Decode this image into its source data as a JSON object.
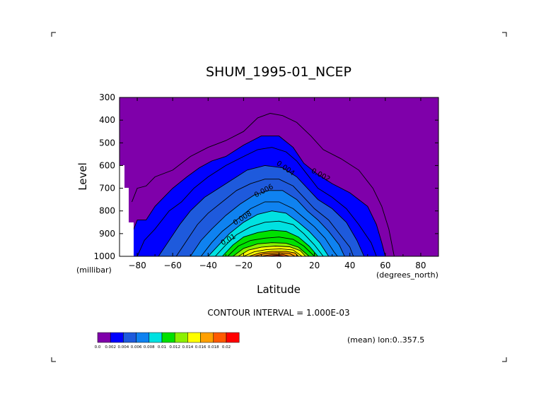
{
  "chart_data": {
    "type": "filled-contour",
    "title": "SHUM_1995-01_NCEP",
    "xlabel": "Latitude",
    "ylabel": "Level",
    "x_units": "(degrees_north)",
    "y_units": "(millibar)",
    "xlim": [
      -90,
      90
    ],
    "ylim": [
      1000,
      300
    ],
    "x_ticks": [
      -80,
      -60,
      -40,
      -20,
      0,
      20,
      40,
      60,
      80
    ],
    "y_ticks": [
      300,
      400,
      500,
      600,
      700,
      800,
      900,
      1000
    ],
    "contour_interval_text": "CONTOUR INTERVAL = 1.000E-03",
    "mean_text": "(mean) lon:0..357.5",
    "contour_labels": [
      "0.002",
      "0.004",
      "0.006",
      "0.008",
      "0.01"
    ],
    "colorbar": {
      "colors": [
        "#7f00aa",
        "#0000ff",
        "#1e5adc",
        "#0f82f0",
        "#00e1e1",
        "#00e100",
        "#8cf000",
        "#ffff00",
        "#ffa000",
        "#ff5a00",
        "#ff0000"
      ],
      "labels": [
        "0.0",
        "0.002",
        "0.004",
        "0.006",
        "0.008",
        "0.01",
        "0.012",
        "0.014",
        "0.016",
        "0.018",
        "0.02"
      ]
    },
    "levels": [
      0,
      0.001,
      0.002,
      0.003,
      0.004,
      0.005,
      0.006,
      0.007,
      0.008,
      0.009,
      0.01,
      0.011,
      0.012,
      0.013,
      0.014,
      0.015,
      0.016,
      0.017,
      0.018
    ],
    "fill_colors": [
      "#7f00aa",
      "#7f00aa",
      "#0000ff",
      "#0000ff",
      "#1e5adc",
      "#1e5adc",
      "#0f82f0",
      "#0f82f0",
      "#00e1e1",
      "#00e1e1",
      "#00e100",
      "#00e100",
      "#8cf000",
      "#ffff00",
      "#ffff00",
      "#ffa000",
      "#ffa000",
      "#ff5a00",
      "#ff0000"
    ],
    "contours": [
      {
        "level": 0.001,
        "points": [
          [
            -83,
            760
          ],
          [
            -80,
            700
          ],
          [
            -75,
            690
          ],
          [
            -70,
            650
          ],
          [
            -60,
            620
          ],
          [
            -50,
            560
          ],
          [
            -40,
            520
          ],
          [
            -30,
            490
          ],
          [
            -20,
            450
          ],
          [
            -12,
            390
          ],
          [
            -5,
            370
          ],
          [
            2,
            380
          ],
          [
            10,
            410
          ],
          [
            18,
            470
          ],
          [
            25,
            530
          ],
          [
            35,
            570
          ],
          [
            45,
            620
          ],
          [
            53,
            700
          ],
          [
            58,
            780
          ],
          [
            62,
            880
          ],
          [
            65,
            1000
          ]
        ]
      },
      {
        "level": 0.002,
        "points": [
          [
            -88,
            1000
          ],
          [
            -84,
            920
          ],
          [
            -80,
            840
          ],
          [
            -75,
            840
          ],
          [
            -70,
            780
          ],
          [
            -65,
            740
          ],
          [
            -60,
            700
          ],
          [
            -52,
            650
          ],
          [
            -45,
            610
          ],
          [
            -38,
            580
          ],
          [
            -30,
            560
          ],
          [
            -20,
            510
          ],
          [
            -10,
            470
          ],
          [
            0,
            470
          ],
          [
            8,
            520
          ],
          [
            14,
            590
          ],
          [
            22,
            640
          ],
          [
            30,
            680
          ],
          [
            40,
            720
          ],
          [
            50,
            780
          ],
          [
            55,
            860
          ],
          [
            58,
            940
          ],
          [
            60,
            1000
          ]
        ]
      },
      {
        "level": 0.003,
        "points": [
          [
            -80,
            1000
          ],
          [
            -76,
            930
          ],
          [
            -70,
            880
          ],
          [
            -62,
            800
          ],
          [
            -55,
            760
          ],
          [
            -48,
            700
          ],
          [
            -40,
            650
          ],
          [
            -30,
            600
          ],
          [
            -20,
            560
          ],
          [
            -12,
            530
          ],
          [
            -4,
            520
          ],
          [
            4,
            540
          ],
          [
            10,
            580
          ],
          [
            16,
            640
          ],
          [
            22,
            700
          ],
          [
            30,
            740
          ],
          [
            38,
            790
          ],
          [
            45,
            860
          ],
          [
            52,
            940
          ],
          [
            55,
            1000
          ]
        ]
      },
      {
        "level": 0.004,
        "points": [
          [
            -68,
            1000
          ],
          [
            -62,
            930
          ],
          [
            -56,
            860
          ],
          [
            -50,
            800
          ],
          [
            -42,
            740
          ],
          [
            -34,
            700
          ],
          [
            -26,
            660
          ],
          [
            -18,
            620
          ],
          [
            -8,
            600
          ],
          [
            2,
            610
          ],
          [
            10,
            650
          ],
          [
            16,
            700
          ],
          [
            22,
            750
          ],
          [
            30,
            790
          ],
          [
            38,
            850
          ],
          [
            44,
            930
          ],
          [
            48,
            1000
          ]
        ]
      },
      {
        "level": 0.005,
        "points": [
          [
            -58,
            1000
          ],
          [
            -52,
            930
          ],
          [
            -46,
            860
          ],
          [
            -40,
            810
          ],
          [
            -32,
            760
          ],
          [
            -24,
            710
          ],
          [
            -16,
            680
          ],
          [
            -8,
            660
          ],
          [
            0,
            660
          ],
          [
            8,
            690
          ],
          [
            14,
            740
          ],
          [
            20,
            790
          ],
          [
            28,
            840
          ],
          [
            34,
            900
          ],
          [
            40,
            960
          ],
          [
            42,
            1000
          ]
        ]
      },
      {
        "level": 0.006,
        "points": [
          [
            -50,
            1000
          ],
          [
            -44,
            930
          ],
          [
            -38,
            880
          ],
          [
            -30,
            820
          ],
          [
            -22,
            770
          ],
          [
            -14,
            730
          ],
          [
            -6,
            710
          ],
          [
            2,
            710
          ],
          [
            10,
            750
          ],
          [
            16,
            800
          ],
          [
            22,
            840
          ],
          [
            28,
            890
          ],
          [
            34,
            950
          ],
          [
            37,
            1000
          ]
        ]
      },
      {
        "level": 0.007,
        "points": [
          [
            -44,
            1000
          ],
          [
            -38,
            940
          ],
          [
            -32,
            890
          ],
          [
            -24,
            840
          ],
          [
            -16,
            790
          ],
          [
            -8,
            760
          ],
          [
            0,
            760
          ],
          [
            8,
            790
          ],
          [
            14,
            830
          ],
          [
            20,
            870
          ],
          [
            26,
            920
          ],
          [
            31,
            980
          ],
          [
            33,
            1000
          ]
        ]
      },
      {
        "level": 0.008,
        "points": [
          [
            -40,
            1000
          ],
          [
            -34,
            950
          ],
          [
            -28,
            900
          ],
          [
            -20,
            850
          ],
          [
            -12,
            815
          ],
          [
            -4,
            800
          ],
          [
            4,
            810
          ],
          [
            11,
            850
          ],
          [
            17,
            890
          ],
          [
            23,
            940
          ],
          [
            28,
            1000
          ]
        ]
      },
      {
        "level": 0.009,
        "points": [
          [
            -36,
            1000
          ],
          [
            -30,
            950
          ],
          [
            -24,
            905
          ],
          [
            -16,
            870
          ],
          [
            -8,
            850
          ],
          [
            0,
            845
          ],
          [
            8,
            860
          ],
          [
            14,
            900
          ],
          [
            20,
            950
          ],
          [
            25,
            1000
          ]
        ]
      },
      {
        "level": 0.01,
        "points": [
          [
            -32,
            1000
          ],
          [
            -26,
            950
          ],
          [
            -20,
            915
          ],
          [
            -12,
            895
          ],
          [
            -4,
            885
          ],
          [
            4,
            890
          ],
          [
            11,
            915
          ],
          [
            17,
            955
          ],
          [
            22,
            1000
          ]
        ]
      },
      {
        "level": 0.011,
        "points": [
          [
            -29,
            1000
          ],
          [
            -23,
            955
          ],
          [
            -16,
            930
          ],
          [
            -8,
            920
          ],
          [
            0,
            915
          ],
          [
            8,
            925
          ],
          [
            14,
            955
          ],
          [
            20,
            1000
          ]
        ]
      },
      {
        "level": 0.012,
        "points": [
          [
            -26,
            1000
          ],
          [
            -20,
            965
          ],
          [
            -12,
            945
          ],
          [
            -4,
            940
          ],
          [
            4,
            942
          ],
          [
            11,
            960
          ],
          [
            17,
            1000
          ]
        ]
      },
      {
        "level": 0.013,
        "points": [
          [
            -23,
            1000
          ],
          [
            -17,
            972
          ],
          [
            -10,
            960
          ],
          [
            -2,
            955
          ],
          [
            6,
            958
          ],
          [
            12,
            975
          ],
          [
            15,
            1000
          ]
        ]
      },
      {
        "level": 0.014,
        "points": [
          [
            -20,
            1000
          ],
          [
            -14,
            980
          ],
          [
            -7,
            970
          ],
          [
            1,
            967
          ],
          [
            8,
            972
          ],
          [
            13,
            1000
          ]
        ]
      },
      {
        "level": 0.015,
        "points": [
          [
            -17,
            1000
          ],
          [
            -11,
            985
          ],
          [
            -4,
            978
          ],
          [
            4,
            978
          ],
          [
            9,
            985
          ],
          [
            11,
            1000
          ]
        ]
      },
      {
        "level": 0.016,
        "points": [
          [
            -14,
            1000
          ],
          [
            -8,
            988
          ],
          [
            0,
            984
          ],
          [
            6,
            988
          ],
          [
            9,
            1000
          ]
        ]
      },
      {
        "level": 0.017,
        "points": [
          [
            -10,
            1000
          ],
          [
            -4,
            992
          ],
          [
            2,
            991
          ],
          [
            6,
            1000
          ]
        ]
      },
      {
        "level": 0.018,
        "points": [
          [
            -6,
            1000
          ],
          [
            -1,
            995
          ],
          [
            3,
            1000
          ]
        ]
      }
    ]
  }
}
